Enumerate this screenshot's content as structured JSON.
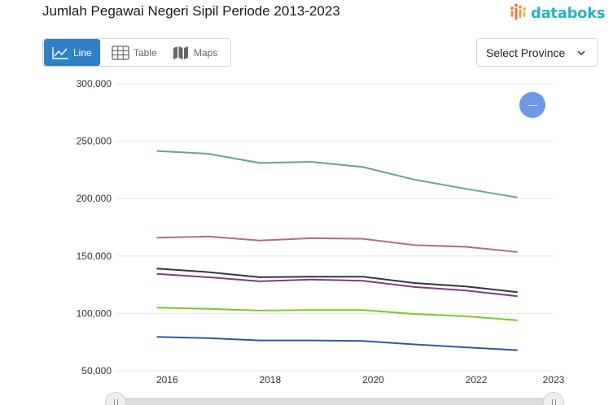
{
  "header": {
    "title": "Jumlah Pegawai Negeri Sipil Periode 2013-2023",
    "brand": "databoks",
    "brand_color": "#26b3c0"
  },
  "view_tabs": [
    {
      "label": "Line",
      "icon": "line-chart-icon",
      "active": true
    },
    {
      "label": "Table",
      "icon": "table-grid-icon",
      "active": false
    },
    {
      "label": "Maps",
      "icon": "map-icon",
      "active": false
    }
  ],
  "province_select": {
    "label": "Select Province",
    "icon": "chevron-down-icon"
  },
  "zoom_button": {
    "icon": "minus-icon",
    "color": "#6f98e6"
  },
  "chart_data": {
    "type": "line",
    "title": "",
    "xlabel": "",
    "ylabel": "",
    "ylim": [
      50000,
      300000
    ],
    "y_ticks": [
      50000,
      100000,
      150000,
      200000,
      250000,
      300000
    ],
    "y_tick_labels": [
      "50,000",
      "100,000",
      "150,000",
      "200,000",
      "250,000",
      "300,000"
    ],
    "x_tick_labels": [
      "2016",
      "2018",
      "2020",
      "2022",
      "2023"
    ],
    "x_tick_values": [
      2015.7,
      2017.7,
      2019.7,
      2021.7,
      2023.2
    ],
    "xlim": [
      2014.7,
      2023.2
    ],
    "x": [
      2015.5,
      2016.5,
      2017.5,
      2018.5,
      2019.5,
      2020.5,
      2021.5,
      2022.5
    ],
    "grid": true,
    "series": [
      {
        "color": "#6aa67a",
        "values": [
          241500,
          239000,
          231000,
          232000,
          227500,
          216500,
          208500,
          201000
        ]
      },
      {
        "color": "#b06a8c",
        "values": [
          166000,
          167000,
          163500,
          165500,
          165000,
          159500,
          158000,
          153500
        ]
      },
      {
        "color": "#2e3b39",
        "values": [
          139000,
          136000,
          131500,
          132000,
          132000,
          126500,
          123500,
          118500
        ]
      },
      {
        "color": "#7b3f7a",
        "values": [
          134500,
          131500,
          128000,
          129500,
          128500,
          123000,
          120000,
          115000
        ]
      },
      {
        "color": "#7ec62a",
        "values": [
          105000,
          104000,
          102500,
          103000,
          103000,
          99500,
          97500,
          94000
        ]
      },
      {
        "color": "#2c5aa0",
        "values": [
          79500,
          78500,
          76500,
          76500,
          76000,
          73000,
          70500,
          68000
        ]
      }
    ]
  }
}
